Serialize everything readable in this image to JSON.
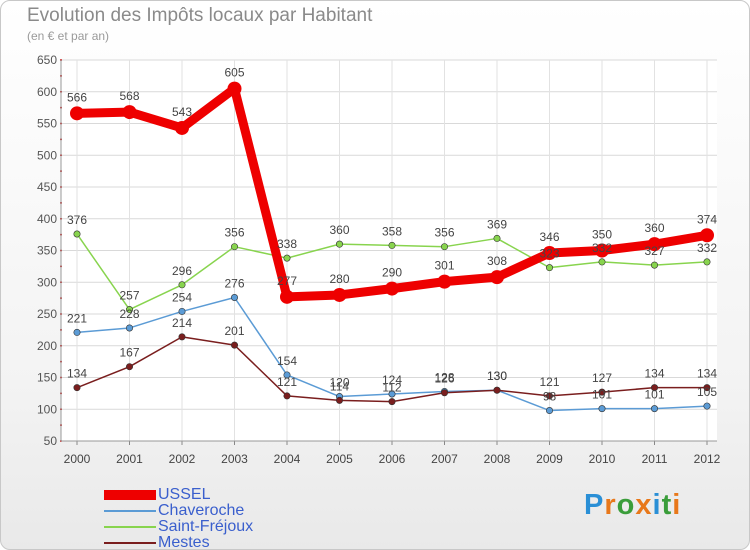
{
  "title": "Evolution des Impôts locaux par Habitant",
  "subtitle": "(en € et par an)",
  "logo": {
    "text": "Proxiti",
    "letter_colors": [
      "#2a8fd6",
      "#e8781a",
      "#3a9d3a",
      "#e8781a",
      "#2a8fd6",
      "#3a9d3a",
      "#e8781a"
    ]
  },
  "chart_data": {
    "type": "line",
    "title": "Evolution des Impôts locaux par Habitant",
    "subtitle": "(en € et par an)",
    "xlabel": "",
    "ylabel": "",
    "categories": [
      "2000",
      "2001",
      "2002",
      "2003",
      "2004",
      "2005",
      "2006",
      "2007",
      "2008",
      "2009",
      "2010",
      "2011",
      "2012"
    ],
    "y_ticks": [
      50,
      100,
      150,
      200,
      250,
      300,
      350,
      400,
      450,
      500,
      550,
      600,
      650
    ],
    "ylim": [
      50,
      650
    ],
    "grid": true,
    "legend_position": "bottom-left",
    "series": [
      {
        "name": "USSEL",
        "color": "#ee0000",
        "thick": true,
        "values": [
          566,
          568,
          543,
          605,
          277,
          280,
          290,
          301,
          308,
          346,
          350,
          360,
          374
        ],
        "labels": [
          "566",
          "568",
          "543",
          "605",
          "277",
          "280",
          "290",
          "301",
          "308",
          "346",
          "350",
          "360",
          "374"
        ]
      },
      {
        "name": "Chaveroche",
        "color": "#5b9bd5",
        "thick": false,
        "values": [
          221,
          228,
          254,
          276,
          154,
          120,
          124,
          128,
          130,
          98,
          101,
          101,
          105
        ],
        "labels": [
          "221",
          "228",
          "254",
          "276",
          "154",
          "120",
          "124",
          "128",
          "130",
          "98",
          "101",
          "101",
          "105"
        ]
      },
      {
        "name": "Saint-Fréjoux",
        "color": "#88d44e",
        "thick": false,
        "values": [
          376,
          257,
          296,
          356,
          338,
          360,
          358,
          356,
          369,
          323,
          332,
          327,
          332
        ],
        "labels": [
          "376",
          "257",
          "296",
          "356",
          "338",
          "360",
          "358",
          "356",
          "369",
          "323",
          "332",
          "327",
          "332"
        ]
      },
      {
        "name": "Mestes",
        "color": "#7a1e1e",
        "thick": false,
        "values": [
          134,
          167,
          214,
          201,
          121,
          114,
          112,
          126,
          130,
          121,
          127,
          134,
          134
        ],
        "labels": [
          "134",
          "167",
          "214",
          "201",
          "121",
          "114",
          "112",
          "126",
          "130",
          "121",
          "127",
          "134",
          "134"
        ]
      }
    ]
  }
}
